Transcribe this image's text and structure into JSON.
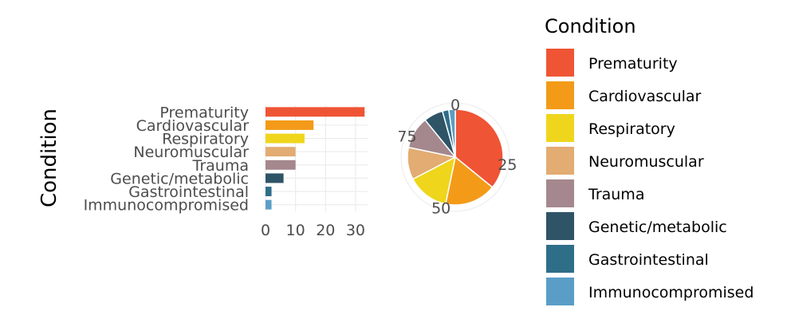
{
  "chart_data": [
    {
      "type": "bar",
      "orientation": "horizontal",
      "ylabel": "Condition",
      "categories": [
        "Prematurity",
        "Cardiovascular",
        "Respiratory",
        "Neuromuscular",
        "Trauma",
        "Genetic/metabolic",
        "Gastrointestinal",
        "Immunocompromised"
      ],
      "values": [
        33,
        16,
        13,
        10,
        10,
        6,
        2,
        2
      ],
      "xlim": [
        0,
        34
      ],
      "xticks": [
        "0",
        "10",
        "20",
        "30"
      ],
      "grid": true
    },
    {
      "type": "pie",
      "categories": [
        "Prematurity",
        "Cardiovascular",
        "Respiratory",
        "Neuromuscular",
        "Trauma",
        "Genetic/metabolic",
        "Gastrointestinal",
        "Immunocompromised"
      ],
      "values": [
        33,
        16,
        13,
        10,
        10,
        6,
        2,
        2
      ],
      "ticks": [
        "0",
        "25",
        "50",
        "75"
      ],
      "grid": true
    }
  ],
  "legend": {
    "title": "Condition",
    "placement": "right",
    "items": [
      {
        "label": "Prematurity",
        "color": "#EF5435"
      },
      {
        "label": "Cardiovascular",
        "color": "#F39B19"
      },
      {
        "label": "Respiratory",
        "color": "#EFD61C"
      },
      {
        "label": "Neuromuscular",
        "color": "#E2AC72"
      },
      {
        "label": "Trauma",
        "color": "#A4888D"
      },
      {
        "label": "Genetic/metabolic",
        "color": "#2E5466"
      },
      {
        "label": "Gastrointestinal",
        "color": "#2E6E89"
      },
      {
        "label": "Immunocompromised",
        "color": "#5A9EC7"
      }
    ]
  }
}
